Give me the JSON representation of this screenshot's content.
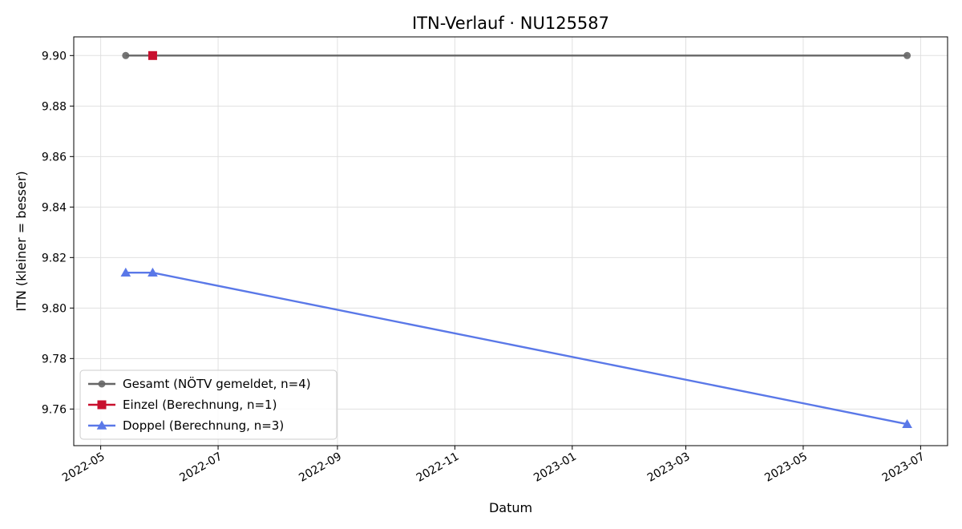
{
  "chart_data": {
    "type": "line",
    "title": "ITN-Verlauf · NU125587",
    "xlabel": "Datum",
    "ylabel": "ITN  (kleiner = besser)",
    "x_axis_type": "date",
    "xlim": [
      "2022-04-17",
      "2023-07-15"
    ],
    "ylim": [
      9.7455,
      9.9074
    ],
    "x_ticks": [
      "2022-05-01",
      "2022-07-01",
      "2022-09-01",
      "2022-11-01",
      "2023-01-01",
      "2023-03-01",
      "2023-05-01",
      "2023-07-01"
    ],
    "x_tick_labels": [
      "2022-05",
      "2022-07",
      "2022-09",
      "2022-11",
      "2023-01",
      "2023-03",
      "2023-05",
      "2023-07"
    ],
    "y_ticks": [
      9.76,
      9.78,
      9.8,
      9.82,
      9.84,
      9.86,
      9.88,
      9.9
    ],
    "y_tick_labels": [
      "9.76",
      "9.78",
      "9.80",
      "9.82",
      "9.84",
      "9.86",
      "9.88",
      "9.90"
    ],
    "grid": true,
    "legend_position": "lower-left",
    "series": [
      {
        "name": "Gesamt (NÖTV gemeldet, n=4)",
        "color": "#666666",
        "marker": "circle",
        "points": [
          {
            "x": "2022-05-14",
            "y": 9.9
          },
          {
            "x": "2022-05-28",
            "y": 9.9
          },
          {
            "x": "2023-06-24",
            "y": 9.9
          }
        ]
      },
      {
        "name": "Einzel (Berechnung, n=1)",
        "color": "#c8102e",
        "marker": "square",
        "points": [
          {
            "x": "2022-05-28",
            "y": 9.9
          }
        ]
      },
      {
        "name": "Doppel (Berechnung, n=3)",
        "color": "#5a78e8",
        "marker": "triangle",
        "points": [
          {
            "x": "2022-05-14",
            "y": 9.814
          },
          {
            "x": "2022-05-28",
            "y": 9.814
          },
          {
            "x": "2023-06-24",
            "y": 9.754
          }
        ]
      }
    ]
  }
}
